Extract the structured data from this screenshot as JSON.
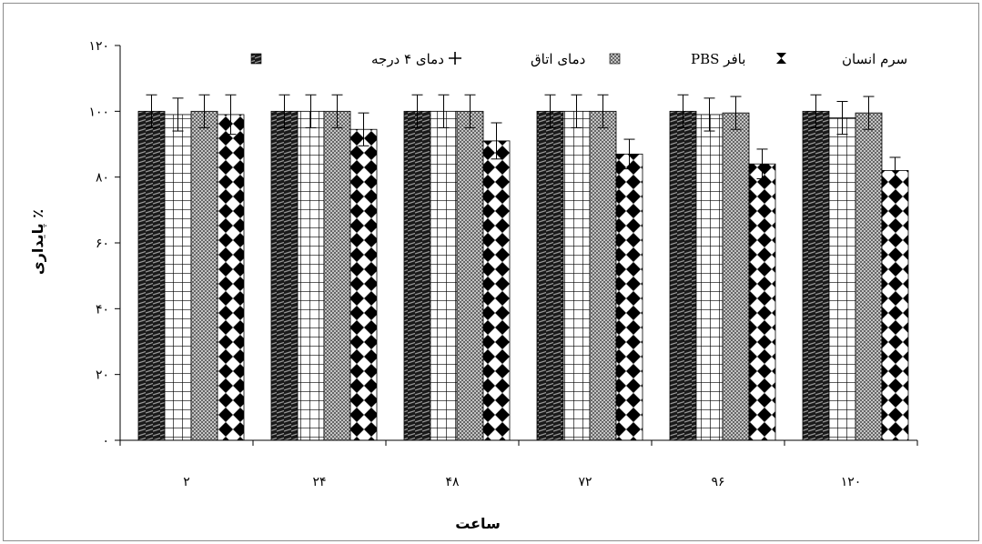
{
  "chart_data": {
    "type": "bar",
    "categories": [
      "۲",
      "۲۴",
      "۴۸",
      "۷۲",
      "۹۶",
      "۱۲۰"
    ],
    "xlabel": "ساعت",
    "ylabel": "پایداری ٪",
    "ylim": [
      0,
      120
    ],
    "yticks": [
      0,
      20,
      40,
      60,
      80,
      100,
      120
    ],
    "ytick_labels": [
      "۰",
      "۲۰",
      "۴۰",
      "۶۰",
      "۸۰",
      "۱۰۰",
      "۱۲۰"
    ],
    "grid": false,
    "legend_position": "top",
    "series": [
      {
        "name": "دمای ۴ درجه",
        "pattern": "diagonal-stripes",
        "values": [
          100,
          100,
          100,
          100,
          100,
          100
        ],
        "errors": [
          5,
          5,
          5,
          5,
          5,
          5
        ]
      },
      {
        "name": "دمای اتاق",
        "pattern": "grid",
        "values": [
          99,
          100,
          100,
          100,
          99,
          98
        ],
        "errors": [
          5,
          5,
          5,
          5,
          5,
          5
        ]
      },
      {
        "name": "بافر PBS",
        "pattern": "crosshatch",
        "values": [
          100,
          100,
          100,
          100,
          99.5,
          99.5
        ],
        "errors": [
          5,
          5,
          5,
          5,
          5,
          5
        ]
      },
      {
        "name": "سرم انسان",
        "pattern": "diamonds",
        "values": [
          99,
          94.5,
          91,
          87,
          84,
          82
        ],
        "errors": [
          6,
          5,
          5.5,
          4.5,
          4.5,
          4
        ]
      }
    ]
  }
}
